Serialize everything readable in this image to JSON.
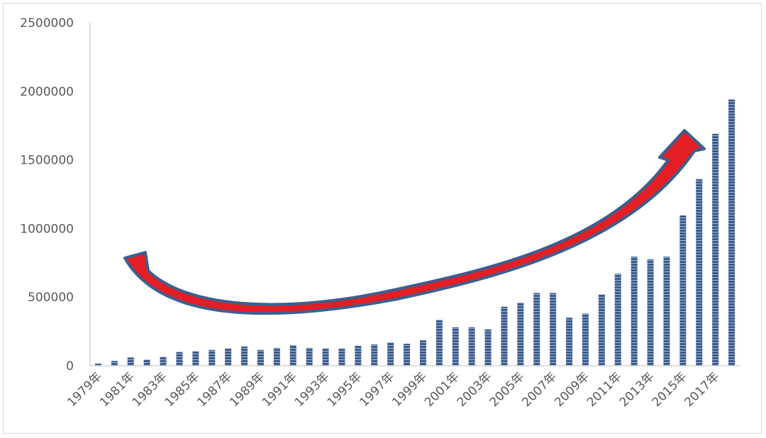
{
  "colors": {
    "bar": "#3a5d8f",
    "bar_stripe": "#ffffff",
    "axis": "#bfbfbf",
    "arrow_fill": "#e31e24",
    "arrow_stroke": "#3c5f8f"
  },
  "chart_data": {
    "type": "bar",
    "title": "",
    "xlabel": "",
    "ylabel": "",
    "ylim": [
      0,
      2500000
    ],
    "yticks": [
      0,
      500000,
      1000000,
      1500000,
      2000000,
      2500000
    ],
    "ytick_labels": [
      "0",
      "500000",
      "1000000",
      "1500000",
      "2000000",
      "2500000"
    ],
    "grid": false,
    "legend": "none",
    "categories": [
      "1979年",
      "1980年",
      "1981年",
      "1982年",
      "1983年",
      "1984年",
      "1985年",
      "1986年",
      "1987年",
      "1988年",
      "1989年",
      "1990年",
      "1991年",
      "1992年",
      "1993年",
      "1994年",
      "1995年",
      "1996年",
      "1997年",
      "1998年",
      "1999年",
      "2000年",
      "2001年",
      "2002年",
      "2003年",
      "2004年",
      "2005年",
      "2006年",
      "2007年",
      "2008年",
      "2009年",
      "2010年",
      "2011年",
      "2012年",
      "2013年",
      "2014年",
      "2015年",
      "2016年",
      "2017年",
      "2018年"
    ],
    "xtick_labels": [
      "1979年",
      "1981年",
      "1983年",
      "1985年",
      "1987年",
      "1989年",
      "1991年",
      "1993年",
      "1995年",
      "1997年",
      "1999年",
      "2001年",
      "2003年",
      "2005年",
      "2007年",
      "2009年",
      "2011年",
      "2013年",
      "2015年",
      "2017年"
    ],
    "values": [
      15000,
      35000,
      60000,
      45000,
      65000,
      100000,
      105000,
      115000,
      125000,
      140000,
      115000,
      130000,
      150000,
      130000,
      125000,
      125000,
      145000,
      155000,
      170000,
      160000,
      185000,
      335000,
      280000,
      280000,
      265000,
      430000,
      460000,
      530000,
      530000,
      350000,
      380000,
      520000,
      670000,
      795000,
      775000,
      795000,
      1095000,
      1360000,
      1690000,
      1940000
    ],
    "annotations": [
      {
        "type": "trend-arrow",
        "shape": "curved",
        "direction": "up-right"
      }
    ]
  }
}
